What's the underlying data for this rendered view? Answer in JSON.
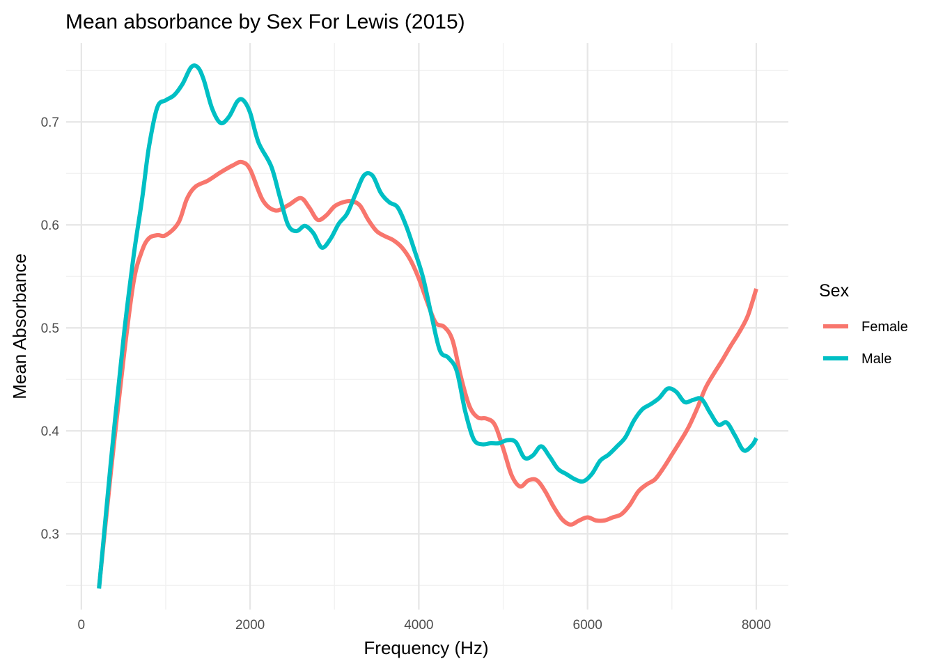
{
  "chart_data": {
    "type": "line",
    "title": "Mean absorbance by Sex For Lewis (2015)",
    "xlabel": "Frequency (Hz)",
    "ylabel": "Mean Absorbance",
    "xlim": [
      -180,
      8380
    ],
    "ylim": [
      0.2265,
      0.7765
    ],
    "x_ticks": [
      0,
      2000,
      4000,
      6000,
      8000
    ],
    "x_tick_labels": [
      "0",
      "2000",
      "4000",
      "6000",
      "8000"
    ],
    "y_ticks": [
      0.3,
      0.4,
      0.5,
      0.6,
      0.7
    ],
    "y_tick_labels": [
      "0.3",
      "0.4",
      "0.5",
      "0.6",
      "0.7"
    ],
    "grid": true,
    "legend": {
      "title": "Sex",
      "position": "right"
    },
    "series": [
      {
        "name": "Female",
        "color": "#F8766D",
        "x": [
          210,
          350,
          500,
          620,
          720,
          800,
          900,
          1000,
          1150,
          1250,
          1350,
          1500,
          1650,
          1800,
          1900,
          2000,
          2150,
          2300,
          2450,
          2600,
          2700,
          2800,
          2900,
          3000,
          3100,
          3200,
          3300,
          3400,
          3500,
          3600,
          3700,
          3800,
          3900,
          4000,
          4100,
          4200,
          4300,
          4400,
          4500,
          4600,
          4700,
          4800,
          4900,
          5000,
          5100,
          5200,
          5300,
          5400,
          5500,
          5600,
          5700,
          5800,
          5900,
          6000,
          6100,
          6200,
          6300,
          6400,
          6500,
          6600,
          6700,
          6800,
          6900,
          7000,
          7100,
          7200,
          7300,
          7400,
          7500,
          7600,
          7700,
          7800,
          7900,
          8000
        ],
        "y": [
          0.248,
          0.36,
          0.47,
          0.545,
          0.575,
          0.587,
          0.59,
          0.59,
          0.602,
          0.625,
          0.637,
          0.643,
          0.651,
          0.658,
          0.661,
          0.654,
          0.624,
          0.614,
          0.619,
          0.626,
          0.617,
          0.605,
          0.609,
          0.618,
          0.622,
          0.623,
          0.619,
          0.605,
          0.594,
          0.589,
          0.585,
          0.578,
          0.566,
          0.548,
          0.525,
          0.505,
          0.501,
          0.488,
          0.452,
          0.424,
          0.413,
          0.412,
          0.406,
          0.383,
          0.357,
          0.346,
          0.352,
          0.352,
          0.341,
          0.326,
          0.314,
          0.309,
          0.313,
          0.316,
          0.313,
          0.313,
          0.316,
          0.319,
          0.328,
          0.341,
          0.348,
          0.353,
          0.364,
          0.377,
          0.39,
          0.404,
          0.422,
          0.442,
          0.456,
          0.469,
          0.483,
          0.496,
          0.512,
          0.538
        ]
      },
      {
        "name": "Male",
        "color": "#00BFC4",
        "x": [
          210,
          350,
          500,
          620,
          720,
          800,
          900,
          1000,
          1100,
          1200,
          1300,
          1380,
          1450,
          1550,
          1650,
          1750,
          1850,
          1920,
          2000,
          2100,
          2250,
          2350,
          2450,
          2550,
          2650,
          2750,
          2850,
          2950,
          3050,
          3150,
          3250,
          3350,
          3450,
          3550,
          3650,
          3750,
          3850,
          3950,
          4050,
          4150,
          4250,
          4350,
          4450,
          4550,
          4650,
          4750,
          4850,
          4950,
          5050,
          5150,
          5250,
          5350,
          5450,
          5550,
          5650,
          5750,
          5850,
          5950,
          6050,
          6150,
          6250,
          6350,
          6450,
          6550,
          6650,
          6750,
          6850,
          6950,
          7050,
          7150,
          7250,
          7350,
          7450,
          7550,
          7650,
          7750,
          7850,
          7950,
          8000
        ],
        "y": [
          0.247,
          0.37,
          0.49,
          0.57,
          0.625,
          0.675,
          0.714,
          0.721,
          0.726,
          0.737,
          0.753,
          0.753,
          0.741,
          0.713,
          0.699,
          0.705,
          0.72,
          0.721,
          0.709,
          0.68,
          0.657,
          0.628,
          0.6,
          0.594,
          0.599,
          0.592,
          0.578,
          0.586,
          0.601,
          0.611,
          0.63,
          0.648,
          0.648,
          0.631,
          0.622,
          0.617,
          0.599,
          0.575,
          0.549,
          0.512,
          0.478,
          0.471,
          0.458,
          0.419,
          0.392,
          0.387,
          0.388,
          0.388,
          0.391,
          0.389,
          0.374,
          0.376,
          0.385,
          0.375,
          0.363,
          0.358,
          0.353,
          0.351,
          0.358,
          0.371,
          0.377,
          0.385,
          0.394,
          0.41,
          0.421,
          0.426,
          0.432,
          0.441,
          0.438,
          0.428,
          0.43,
          0.431,
          0.418,
          0.406,
          0.408,
          0.395,
          0.381,
          0.386,
          0.393
        ]
      }
    ]
  }
}
